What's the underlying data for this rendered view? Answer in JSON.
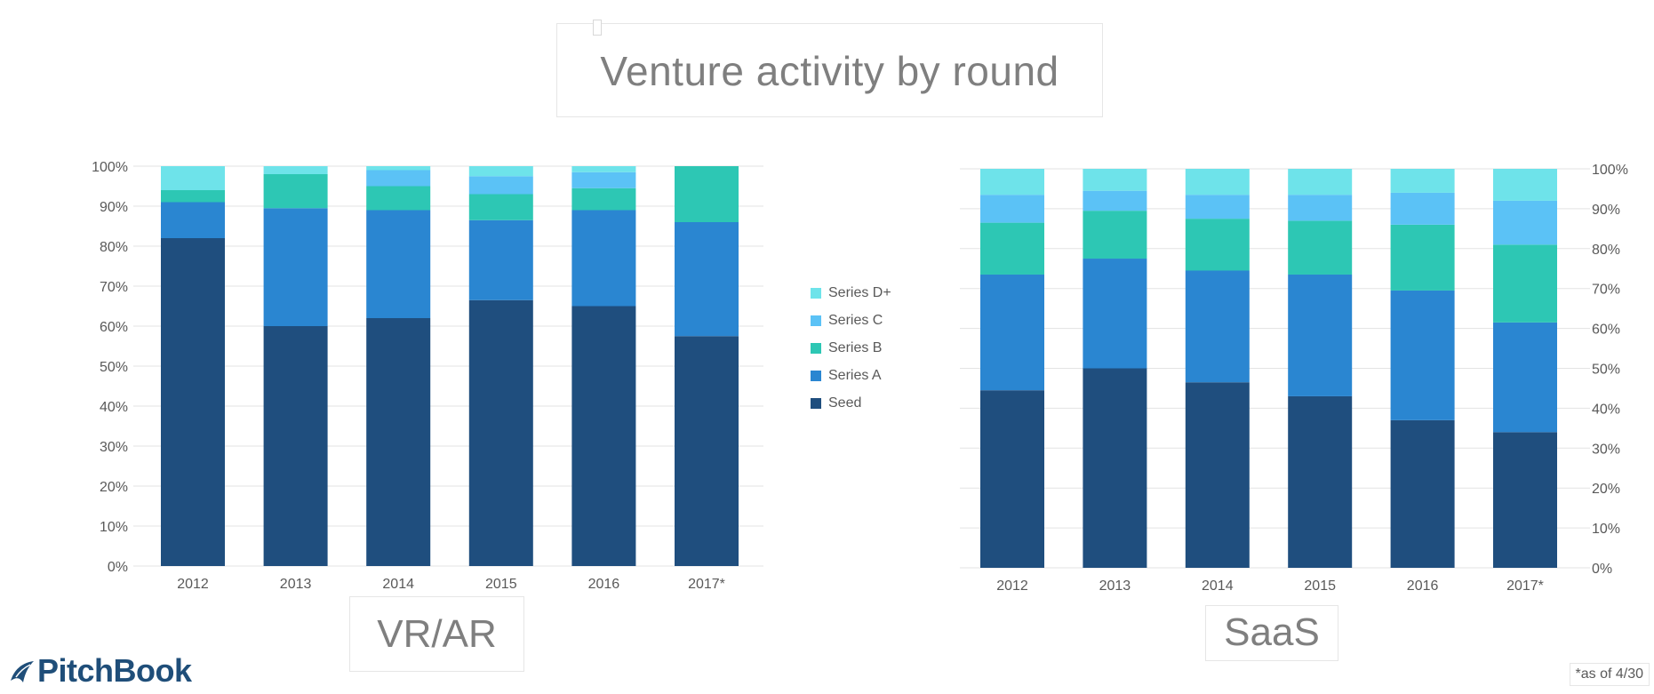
{
  "title": "Venture activity by round",
  "legend": [
    {
      "label": "Series D+",
      "color": "#6ee3ea"
    },
    {
      "label": "Series C",
      "color": "#5bc2f6"
    },
    {
      "label": "Series B",
      "color": "#2dc7b4"
    },
    {
      "label": "Series A",
      "color": "#2a86d1"
    },
    {
      "label": "Seed",
      "color": "#1f4e7e"
    }
  ],
  "vr_label": "VR/AR",
  "saas_label": "SaaS",
  "footnote": "*as of 4/30",
  "logo_text": "PitchBook",
  "chart_data": [
    {
      "type": "bar",
      "stacked": true,
      "name": "VR/AR",
      "categories": [
        "2012",
        "2013",
        "2014",
        "2015",
        "2016",
        "2017*"
      ],
      "series": [
        {
          "name": "Seed",
          "values": [
            82,
            60,
            62,
            66.5,
            65,
            57.5
          ]
        },
        {
          "name": "Series A",
          "values": [
            9,
            29.5,
            27,
            20,
            24,
            28.5
          ]
        },
        {
          "name": "Series B",
          "values": [
            3,
            8.5,
            6,
            6.5,
            5.5,
            14
          ]
        },
        {
          "name": "Series C",
          "values": [
            0,
            0,
            4,
            4.5,
            4,
            0
          ]
        },
        {
          "name": "Series D+",
          "values": [
            6,
            2,
            1,
            2.5,
            1.5,
            0
          ]
        }
      ],
      "yticks": [
        "0%",
        "10%",
        "20%",
        "30%",
        "40%",
        "50%",
        "60%",
        "70%",
        "80%",
        "90%",
        "100%"
      ],
      "ylim": [
        0,
        100
      ],
      "yaxis_side": "left",
      "grid": true
    },
    {
      "type": "bar",
      "stacked": true,
      "name": "SaaS",
      "categories": [
        "2012",
        "2013",
        "2014",
        "2015",
        "2016",
        "2017*"
      ],
      "series": [
        {
          "name": "Seed",
          "values": [
            44.5,
            50,
            46.5,
            43,
            37,
            34
          ]
        },
        {
          "name": "Series A",
          "values": [
            29,
            27.5,
            28,
            30.5,
            32.5,
            27.5
          ]
        },
        {
          "name": "Series B",
          "values": [
            13,
            12,
            13,
            13.5,
            16.5,
            19.5
          ]
        },
        {
          "name": "Series C",
          "values": [
            7,
            5,
            6,
            6.5,
            8,
            11
          ]
        },
        {
          "name": "Series D+",
          "values": [
            6.5,
            5.5,
            6.5,
            6.5,
            6,
            8
          ]
        }
      ],
      "yticks": [
        "0%",
        "10%",
        "20%",
        "30%",
        "40%",
        "50%",
        "60%",
        "70%",
        "80%",
        "90%",
        "100%"
      ],
      "ylim": [
        0,
        100
      ],
      "yaxis_side": "right",
      "grid": true
    }
  ]
}
